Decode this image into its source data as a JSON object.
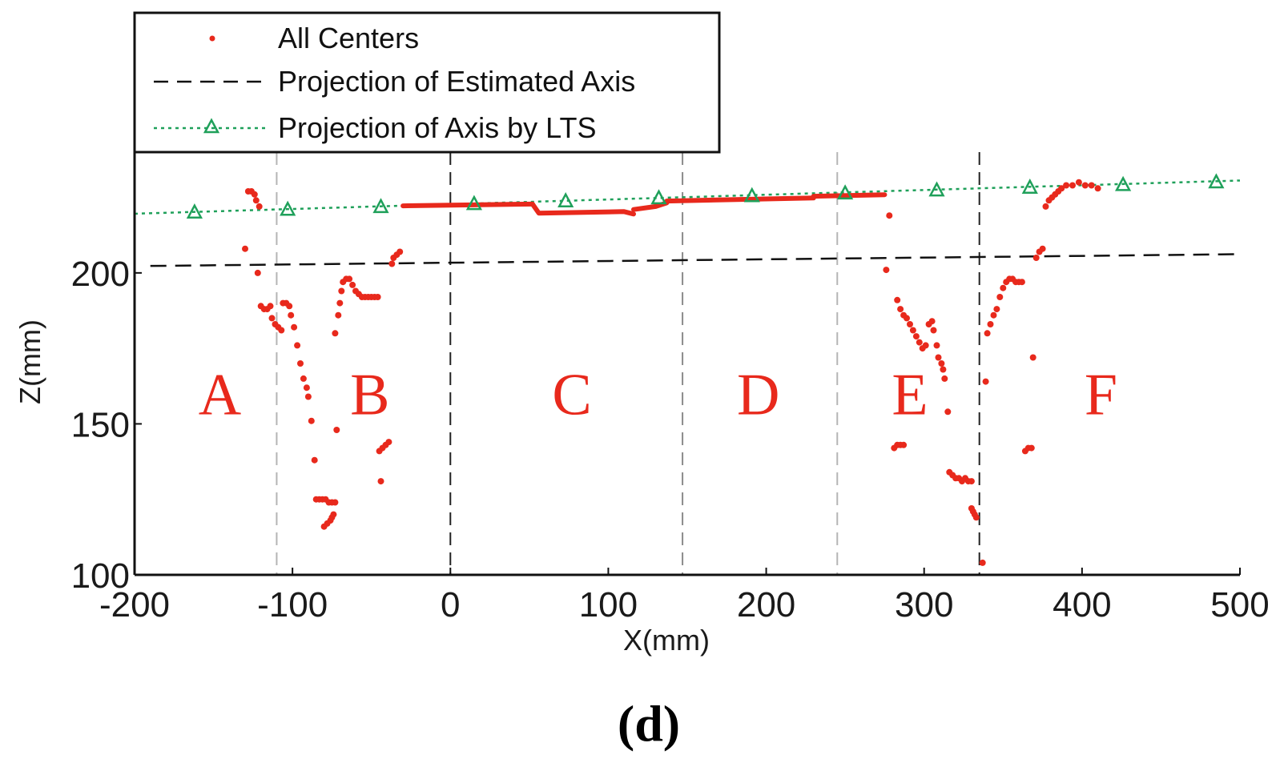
{
  "chart_data": {
    "type": "scatter",
    "panel_label": "(d)",
    "xlabel": "X(mm)",
    "ylabel": "Z(mm)",
    "xlim": [
      -200,
      500
    ],
    "ylim": [
      100,
      240
    ],
    "x_ticks": [
      -200,
      -100,
      0,
      100,
      200,
      300,
      400,
      500
    ],
    "x_tick_labels": [
      "-200",
      "-100",
      "0",
      "100",
      "200",
      "300",
      "400",
      "500"
    ],
    "y_ticks": [
      100,
      150,
      200
    ],
    "y_tick_labels": [
      "100",
      "150",
      "200"
    ],
    "legend": {
      "placement": "top-left",
      "entries": [
        {
          "label": "All Centers",
          "style": "dot",
          "color": "#e8291c"
        },
        {
          "label": "Projection of Estimated Axis",
          "style": "dashed",
          "color": "#111111"
        },
        {
          "label": "Projection of  Axis by LTS",
          "style": "dotted-triangle",
          "color": "#1fa05a"
        }
      ]
    },
    "region_dividers": [
      {
        "x": -110,
        "color": "#b5b5b5"
      },
      {
        "x": 0,
        "color": "#222222"
      },
      {
        "x": 147,
        "color": "#8a8a8a"
      },
      {
        "x": 245,
        "color": "#b5b5b5"
      },
      {
        "x": 335,
        "color": "#222222"
      }
    ],
    "region_labels": [
      {
        "text": "A",
        "x": -146,
        "y": 160
      },
      {
        "text": "B",
        "x": -51,
        "y": 160
      },
      {
        "text": "C",
        "x": 77,
        "y": 160
      },
      {
        "text": "D",
        "x": 195,
        "y": 160
      },
      {
        "text": "E",
        "x": 291,
        "y": 160
      },
      {
        "text": "F",
        "x": 412,
        "y": 160
      }
    ],
    "series": [
      {
        "name": "Projection of Estimated Axis",
        "type": "line",
        "style": "dashed",
        "color": "#111111",
        "x": [
          -190,
          500
        ],
        "y": [
          202.3,
          206.2
        ]
      },
      {
        "name": "Projection of  Axis by LTS",
        "type": "line",
        "style": "dotted",
        "marker": "triangle",
        "color": "#1fa05a",
        "x": [
          -200,
          500
        ],
        "y": [
          219.6,
          230.6
        ],
        "marker_x": [
          -162,
          -103,
          -44,
          15,
          73,
          132,
          191,
          250,
          308,
          367,
          426,
          485
        ],
        "marker_y": [
          220.2,
          221.1,
          222.0,
          223.0,
          223.9,
          224.9,
          225.6,
          226.5,
          227.5,
          228.4,
          229.3,
          230.2
        ]
      },
      {
        "name": "All Centers",
        "type": "scatter",
        "color": "#e8291c",
        "points": [
          [
            -128,
            227
          ],
          [
            -126,
            227
          ],
          [
            -124,
            226
          ],
          [
            -123,
            224
          ],
          [
            -121,
            222
          ],
          [
            -130,
            208
          ],
          [
            -122,
            200
          ],
          [
            -120,
            189
          ],
          [
            -118,
            188
          ],
          [
            -116,
            188
          ],
          [
            -114,
            189
          ],
          [
            -113,
            185
          ],
          [
            -111,
            183
          ],
          [
            -109,
            182
          ],
          [
            -107,
            181
          ],
          [
            -106,
            190
          ],
          [
            -104,
            190
          ],
          [
            -102,
            189
          ],
          [
            -101,
            186
          ],
          [
            -99,
            182
          ],
          [
            -97,
            176
          ],
          [
            -95,
            170
          ],
          [
            -93,
            165
          ],
          [
            -91,
            162
          ],
          [
            -90,
            159
          ],
          [
            -88,
            151
          ],
          [
            -86,
            138
          ],
          [
            -85,
            125
          ],
          [
            -83,
            125
          ],
          [
            -81,
            125
          ],
          [
            -79,
            125
          ],
          [
            -77,
            124
          ],
          [
            -75,
            124
          ],
          [
            -73,
            124
          ],
          [
            -80,
            116
          ],
          [
            -78,
            117
          ],
          [
            -76,
            118
          ],
          [
            -75,
            119
          ],
          [
            -74,
            120
          ],
          [
            -72,
            148
          ],
          [
            -73,
            180
          ],
          [
            -71,
            186
          ],
          [
            -70,
            190
          ],
          [
            -69,
            194
          ],
          [
            -68,
            197
          ],
          [
            -66,
            198
          ],
          [
            -64,
            198
          ],
          [
            -62,
            196
          ],
          [
            -60,
            194
          ],
          [
            -58,
            193
          ],
          [
            -56,
            192
          ],
          [
            -54,
            192
          ],
          [
            -52,
            192
          ],
          [
            -50,
            192
          ],
          [
            -48,
            192
          ],
          [
            -46,
            192
          ],
          [
            -44,
            131
          ],
          [
            -45,
            141
          ],
          [
            -43,
            142
          ],
          [
            -41,
            143
          ],
          [
            -39,
            144
          ],
          [
            -37,
            203
          ],
          [
            -36,
            205
          ],
          [
            -34,
            206
          ],
          [
            -32,
            207
          ],
          [
            278,
            219
          ],
          [
            276,
            201
          ],
          [
            283,
            191
          ],
          [
            285,
            188
          ],
          [
            287,
            186
          ],
          [
            289,
            185
          ],
          [
            291,
            183
          ],
          [
            293,
            181
          ],
          [
            295,
            179
          ],
          [
            297,
            177
          ],
          [
            299,
            175
          ],
          [
            301,
            176
          ],
          [
            303,
            183
          ],
          [
            305,
            184
          ],
          [
            306,
            181
          ],
          [
            308,
            176
          ],
          [
            309,
            172
          ],
          [
            311,
            170
          ],
          [
            312,
            168
          ],
          [
            313,
            165
          ],
          [
            315,
            154
          ],
          [
            281,
            142
          ],
          [
            283,
            143
          ],
          [
            285,
            143
          ],
          [
            287,
            143
          ],
          [
            316,
            134
          ],
          [
            318,
            133
          ],
          [
            320,
            132
          ],
          [
            322,
            132
          ],
          [
            324,
            131
          ],
          [
            326,
            132
          ],
          [
            328,
            131
          ],
          [
            330,
            131
          ],
          [
            330,
            122
          ],
          [
            331,
            121
          ],
          [
            332,
            120
          ],
          [
            333,
            119
          ],
          [
            337,
            104
          ],
          [
            339,
            164
          ],
          [
            340,
            180
          ],
          [
            342,
            183
          ],
          [
            344,
            186
          ],
          [
            346,
            188
          ],
          [
            348,
            192
          ],
          [
            350,
            195
          ],
          [
            352,
            197
          ],
          [
            354,
            198
          ],
          [
            356,
            198
          ],
          [
            358,
            197
          ],
          [
            360,
            197
          ],
          [
            362,
            197
          ],
          [
            364,
            141
          ],
          [
            366,
            142
          ],
          [
            368,
            142
          ],
          [
            369,
            172
          ],
          [
            371,
            205
          ],
          [
            373,
            207
          ],
          [
            375,
            208
          ],
          [
            377,
            222
          ],
          [
            379,
            224
          ],
          [
            381,
            225
          ],
          [
            383,
            226
          ],
          [
            385,
            227
          ],
          [
            387,
            228
          ],
          [
            390,
            229
          ],
          [
            394,
            229
          ],
          [
            398,
            230
          ],
          [
            402,
            229
          ],
          [
            406,
            229
          ],
          [
            410,
            228
          ]
        ],
        "segments": [
          {
            "x": [
              -30,
              52
            ],
            "y": [
              222.2,
              222.8
            ],
            "width": 6
          },
          {
            "x": [
              52,
              56,
              110,
              116
            ],
            "y": [
              222.8,
              219.8,
              220.3,
              219.5
            ],
            "width": 6
          },
          {
            "x": [
              116,
              130,
              137
            ],
            "y": [
              221.0,
              222.0,
              223.2
            ],
            "width": 6
          },
          {
            "x": [
              137,
              230
            ],
            "y": [
              223.8,
              224.8
            ],
            "width": 6
          },
          {
            "x": [
              230,
              275
            ],
            "y": [
              225.4,
              225.9
            ],
            "width": 6
          }
        ]
      }
    ]
  }
}
